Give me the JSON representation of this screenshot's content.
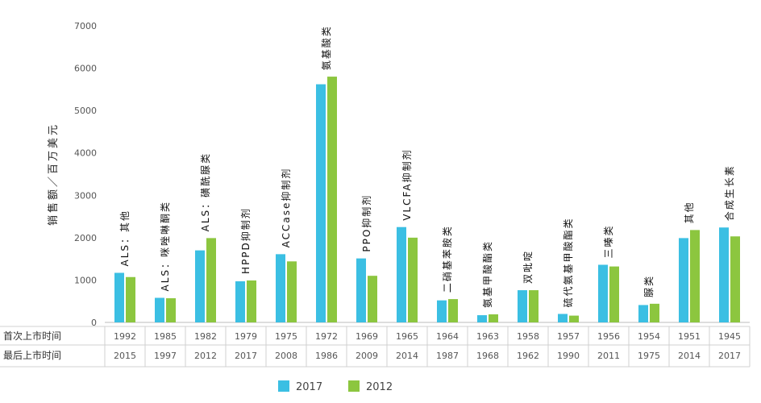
{
  "chart_data": {
    "type": "bar",
    "ylabel": "销售额／百万美元",
    "ylim": [
      0,
      7000
    ],
    "yticks": [
      "0",
      "1000",
      "2000",
      "3000",
      "4000",
      "5000",
      "6000",
      "7000"
    ],
    "categories": [
      "ALS：其他",
      "ALS：咪唑啉酮类",
      "ALS：磺酰脲类",
      "HPPD抑制剂",
      "ACCase抑制剂",
      "氨基酸类",
      "PPO抑制剂",
      "VLCFA抑制剂",
      "二硝基苯胺类",
      "氨基甲酸酯类",
      "双吡啶",
      "硫代氨基甲酸酯类",
      "三嗪类",
      "脲类",
      "其他",
      "合成生长素"
    ],
    "series": [
      {
        "name": "2017",
        "color": "#3bbfe3",
        "values": [
          1170,
          580,
          1700,
          970,
          1610,
          5620,
          1510,
          2250,
          520,
          170,
          760,
          200,
          1360,
          410,
          1990,
          2240
        ]
      },
      {
        "name": "2012",
        "color": "#8cc63f",
        "values": [
          1070,
          570,
          1990,
          990,
          1440,
          5800,
          1100,
          2000,
          550,
          190,
          760,
          160,
          1320,
          440,
          2180,
          2030
        ]
      }
    ],
    "table": {
      "row1_label": "首次上市时间",
      "row2_label": "最后上市时间",
      "first_launch": [
        "1992",
        "1985",
        "1982",
        "1979",
        "1975",
        "1972",
        "1969",
        "1965",
        "1964",
        "1963",
        "1958",
        "1957",
        "1956",
        "1954",
        "1951",
        "1945"
      ],
      "last_launch": [
        "2015",
        "1997",
        "2012",
        "2017",
        "2008",
        "1986",
        "2009",
        "2014",
        "1987",
        "1968",
        "1962",
        "1990",
        "2011",
        "1975",
        "2014",
        "2017"
      ]
    },
    "legend": [
      "2017",
      "2012"
    ],
    "grid": false,
    "legend_position": "bottom"
  }
}
